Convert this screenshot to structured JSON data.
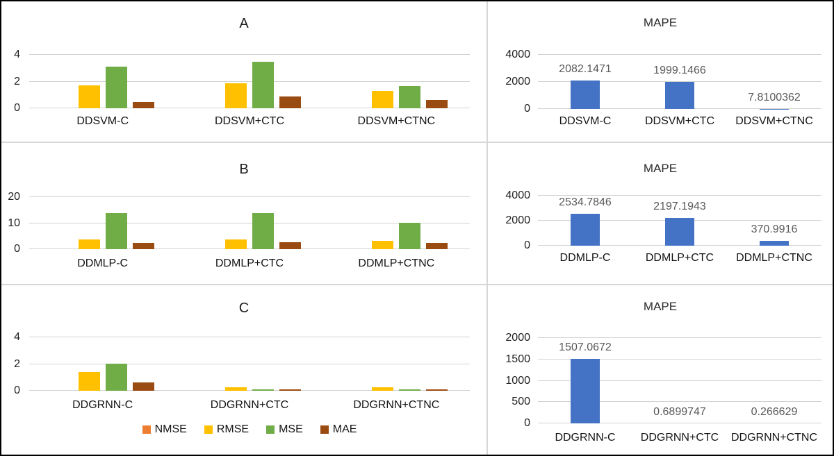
{
  "figure": {
    "background": "#ffffff",
    "outer_border_color": "#000000",
    "divider_color": "#d6d6d6",
    "gridline_color": "#d2d2d2"
  },
  "colors": {
    "nmse_orange": "#ED7D31",
    "rmse_yellow": "#FFC000",
    "mse_green": "#70AD47",
    "mae_brown": "#9A4B12",
    "mape_blue": "#4472C4",
    "data_label_gray": "#595959",
    "axis_text": "#1f1f1f"
  },
  "legend": {
    "items": [
      {
        "label": "NMSE",
        "color": "#ED7D31"
      },
      {
        "label": "RMSE",
        "color": "#FFC000"
      },
      {
        "label": "MSE",
        "color": "#70AD47"
      },
      {
        "label": "MAE",
        "color": "#9A4B12"
      }
    ],
    "position": "bottom-of-panel-C"
  },
  "chart_data": [
    {
      "id": "panel-a",
      "type": "bar",
      "title": "A",
      "categories": [
        "DDSVM-C",
        "DDSVM+CTC",
        "DDSVM+CTNC"
      ],
      "series": [
        {
          "name": "NMSE",
          "color": "#ED7D31",
          "values": [
            0,
            0,
            0
          ]
        },
        {
          "name": "RMSE",
          "color": "#FFC000",
          "values": [
            1.7,
            1.85,
            1.3
          ]
        },
        {
          "name": "MSE",
          "color": "#70AD47",
          "values": [
            3.1,
            3.5,
            1.65
          ]
        },
        {
          "name": "MAE",
          "color": "#9A4B12",
          "values": [
            0.45,
            0.9,
            0.65
          ]
        }
      ],
      "yticks": [
        0,
        2,
        4
      ],
      "ylim": [
        0,
        4
      ],
      "grid": true,
      "legend_position": "none"
    },
    {
      "id": "mape-a",
      "type": "bar",
      "title": "MAPE",
      "categories": [
        "DDSVM-C",
        "DDSVM+CTC",
        "DDSVM+CTNC"
      ],
      "series": [
        {
          "name": "MAPE",
          "color": "#4472C4",
          "values": [
            2082.1471,
            1999.1466,
            7.8100362
          ]
        }
      ],
      "data_labels": [
        "2082.1471",
        "1999.1466",
        "7.8100362"
      ],
      "yticks": [
        0,
        2000,
        4000
      ],
      "ylim": [
        0,
        4000
      ],
      "grid": true,
      "legend_position": "none"
    },
    {
      "id": "panel-b",
      "type": "bar",
      "title": "B",
      "categories": [
        "DDMLP-C",
        "DDMLP+CTC",
        "DDMLP+CTNC"
      ],
      "series": [
        {
          "name": "NMSE",
          "color": "#ED7D31",
          "values": [
            0,
            0,
            0
          ]
        },
        {
          "name": "RMSE",
          "color": "#FFC000",
          "values": [
            3.7,
            3.7,
            3.2
          ]
        },
        {
          "name": "MSE",
          "color": "#70AD47",
          "values": [
            14,
            14,
            10.2
          ]
        },
        {
          "name": "MAE",
          "color": "#9A4B12",
          "values": [
            2.3,
            2.7,
            2.4
          ]
        }
      ],
      "yticks": [
        0,
        10,
        20
      ],
      "ylim": [
        0,
        20
      ],
      "grid": true,
      "legend_position": "none"
    },
    {
      "id": "mape-b",
      "type": "bar",
      "title": "MAPE",
      "categories": [
        "DDMLP-C",
        "DDMLP+CTC",
        "DDMLP+CTNC"
      ],
      "series": [
        {
          "name": "MAPE",
          "color": "#4472C4",
          "values": [
            2534.7846,
            2197.1943,
            370.9916
          ]
        }
      ],
      "data_labels": [
        "2534.7846",
        "2197.1943",
        "370.9916"
      ],
      "yticks": [
        0,
        2000,
        4000
      ],
      "ylim": [
        0,
        4000
      ],
      "grid": true,
      "legend_position": "none"
    },
    {
      "id": "panel-c",
      "type": "bar",
      "title": "C",
      "categories": [
        "DDGRNN-C",
        "DDGRNN+CTC",
        "DDGRNN+CTNC"
      ],
      "series": [
        {
          "name": "NMSE",
          "color": "#ED7D31",
          "values": [
            0,
            0,
            0
          ]
        },
        {
          "name": "RMSE",
          "color": "#FFC000",
          "values": [
            1.4,
            0.28,
            0.28
          ]
        },
        {
          "name": "MSE",
          "color": "#70AD47",
          "values": [
            2.05,
            0.08,
            0.08
          ]
        },
        {
          "name": "MAE",
          "color": "#9A4B12",
          "values": [
            0.6,
            0.12,
            0.12
          ]
        }
      ],
      "yticks": [
        0,
        2,
        4
      ],
      "ylim": [
        0,
        4
      ],
      "grid": true,
      "legend_position": "bottom"
    },
    {
      "id": "mape-c",
      "type": "bar",
      "title": "MAPE",
      "categories": [
        "DDGRNN-C",
        "DDGRNN+CTC",
        "DDGRNN+CTNC"
      ],
      "series": [
        {
          "name": "MAPE",
          "color": "#4472C4",
          "values": [
            1507.0672,
            0.6899747,
            0.266629
          ]
        }
      ],
      "data_labels": [
        "1507.0672",
        "0.6899747",
        "0.266629"
      ],
      "yticks": [
        0,
        500,
        1000,
        1500,
        2000
      ],
      "ylim": [
        0,
        2000
      ],
      "grid": true,
      "legend_position": "none"
    }
  ]
}
